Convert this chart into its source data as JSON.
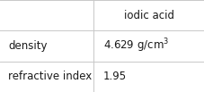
{
  "title": "iodic acid",
  "rows": [
    {
      "label": "density",
      "value_base": "4.629 g/cm",
      "value_sup": "3",
      "value_plain": null
    },
    {
      "label": "refractive index",
      "value_base": "1.95",
      "value_sup": null,
      "value_plain": "1.95"
    }
  ],
  "col_split": 0.455,
  "background_color": "#ffffff",
  "line_color": "#c8c8c8",
  "text_color": "#1a1a1a",
  "font_size": 8.5,
  "title_font_size": 8.5,
  "lw": 0.7
}
